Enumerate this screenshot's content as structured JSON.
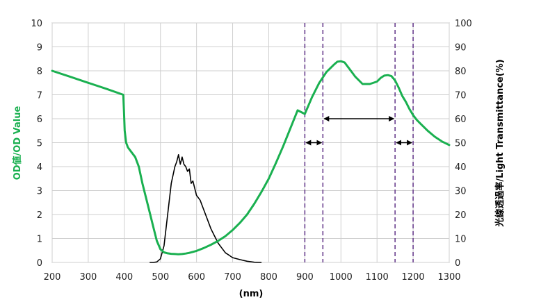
{
  "chart_data": {
    "type": "line",
    "xlabel": "(nm)",
    "ylabel_left": "OD値/OD Value",
    "ylabel_right": "光線透過率/Light Transmittance(%)",
    "xlim": [
      200,
      1300
    ],
    "ylim_left": [
      0,
      10
    ],
    "ylim_right": [
      0,
      100
    ],
    "x_ticks": [
      "200",
      "300",
      "400",
      "500",
      "600",
      "700",
      "800",
      "900",
      "1000",
      "1100",
      "1200",
      "1300"
    ],
    "y_left_ticks": [
      "0",
      "1",
      "2",
      "3",
      "4",
      "5",
      "6",
      "7",
      "8",
      "9",
      "10"
    ],
    "y_right_ticks": [
      "0",
      "10",
      "20",
      "30",
      "40",
      "50",
      "60",
      "70",
      "80",
      "90",
      "100"
    ],
    "grid": true,
    "colors": {
      "od": "#1ab050",
      "lum": "#000000",
      "marker": "#6a3f8f",
      "grid": "#cfcfcf",
      "left_label": "#1ab050"
    },
    "series": [
      {
        "x": [
          200,
          250,
          300,
          350,
          397,
          399,
          401,
          405,
          410,
          420,
          430,
          440,
          450,
          460,
          470,
          480,
          490,
          500,
          510,
          520,
          530,
          540,
          550,
          560,
          570,
          580,
          600,
          620,
          640,
          660,
          680,
          700,
          720,
          740,
          760,
          780,
          800,
          820,
          840,
          860,
          880,
          900,
          920,
          940,
          960,
          980,
          990,
          1000,
          1010,
          1020,
          1040,
          1060,
          1080,
          1100,
          1110,
          1120,
          1130,
          1140,
          1150,
          1160,
          1170,
          1180,
          1190,
          1200,
          1210,
          1220,
          1240,
          1260,
          1280,
          1300
        ],
        "values": [
          8.0,
          7.75,
          7.5,
          7.25,
          7.0,
          6.3,
          5.5,
          5.0,
          4.8,
          4.6,
          4.4,
          4.0,
          3.3,
          2.7,
          2.1,
          1.5,
          0.9,
          0.55,
          0.42,
          0.38,
          0.36,
          0.35,
          0.34,
          0.35,
          0.37,
          0.4,
          0.48,
          0.6,
          0.74,
          0.9,
          1.1,
          1.35,
          1.65,
          2.0,
          2.45,
          2.95,
          3.5,
          4.15,
          4.85,
          5.6,
          6.35,
          6.2,
          6.9,
          7.5,
          7.95,
          8.25,
          8.38,
          8.4,
          8.35,
          8.15,
          7.75,
          7.45,
          7.45,
          7.55,
          7.7,
          7.8,
          7.82,
          7.78,
          7.6,
          7.3,
          6.95,
          6.7,
          6.4,
          6.15,
          5.95,
          5.8,
          5.5,
          5.25,
          5.05,
          4.9
        ]
      },
      {
        "x": [
          470,
          480,
          490,
          500,
          510,
          520,
          530,
          540,
          545,
          550,
          555,
          560,
          565,
          570,
          575,
          580,
          585,
          590,
          600,
          610,
          620,
          630,
          640,
          650,
          660,
          670,
          680,
          690,
          700,
          720,
          740,
          760,
          780
        ],
        "values": [
          0,
          0,
          0.2,
          1.5,
          7,
          20,
          33,
          40,
          42,
          45,
          41,
          44,
          41,
          40,
          38,
          39,
          33,
          34,
          28,
          26,
          22,
          18,
          14,
          11,
          8,
          6,
          4,
          3,
          2,
          1.2,
          0.5,
          0.1,
          0
        ]
      }
    ],
    "annotations": {
      "dashed_lines_x": [
        900,
        950,
        1150,
        1200
      ],
      "arrows": [
        {
          "from": 900,
          "to": 950,
          "y": 50
        },
        {
          "from": 950,
          "to": 1150,
          "y": 60
        },
        {
          "from": 1150,
          "to": 1200,
          "y": 50
        }
      ]
    }
  }
}
